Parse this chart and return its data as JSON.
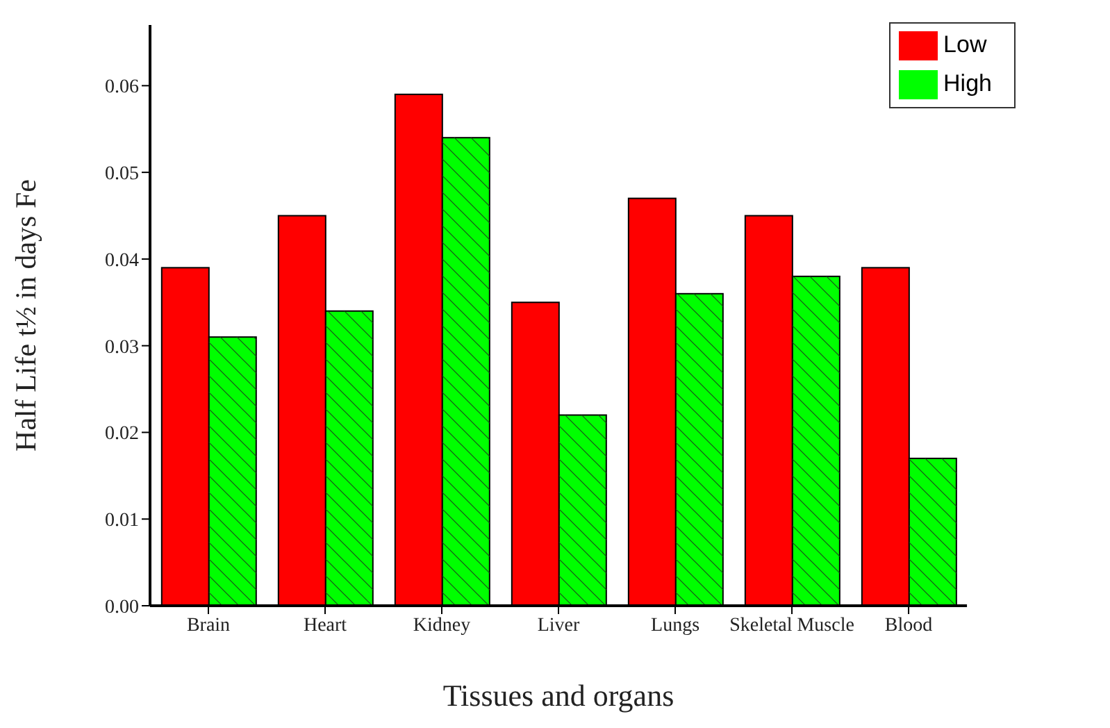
{
  "chart_data": {
    "type": "bar",
    "xlabel": "Tissues  and organs",
    "ylabel": "Half Life t½ in days Fe",
    "categories": [
      "Brain",
      "Heart",
      "Kidney",
      "Liver",
      "Lungs",
      "Skeletal Muscle",
      "Blood"
    ],
    "series": [
      {
        "name": "Low",
        "color": "#ff0000",
        "values": [
          0.039,
          0.045,
          0.059,
          0.035,
          0.047,
          0.045,
          0.039
        ]
      },
      {
        "name": "High",
        "color": "#00ff00",
        "values": [
          0.031,
          0.034,
          0.054,
          0.022,
          0.036,
          0.038,
          0.017
        ]
      }
    ],
    "ylim": [
      0,
      0.067
    ],
    "yticks": [
      {
        "value": 0,
        "label": "0.00"
      },
      {
        "value": 0.01,
        "label": "0.01"
      },
      {
        "value": 0.02,
        "label": "0.02"
      },
      {
        "value": 0.03,
        "label": "0.03"
      },
      {
        "value": 0.04,
        "label": "0.04"
      },
      {
        "value": 0.05,
        "label": "0.05"
      },
      {
        "value": 0.06,
        "label": "0.06"
      }
    ],
    "grid": false,
    "legend": "top right"
  }
}
